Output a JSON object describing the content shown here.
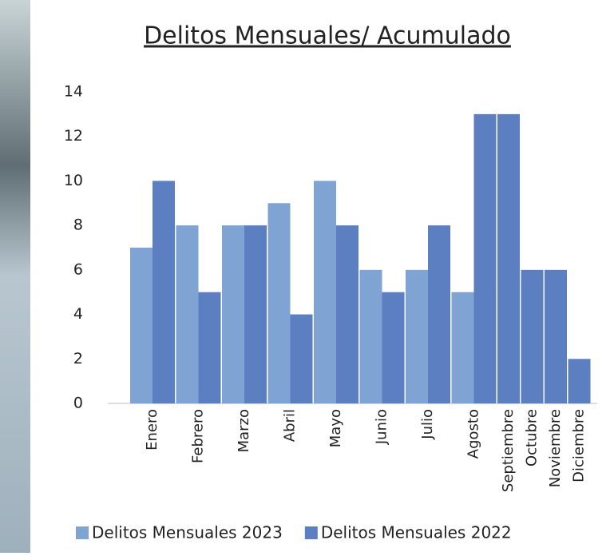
{
  "chart_data": {
    "type": "bar",
    "title": "Delitos Mensuales/ Acumulado",
    "categories": [
      "Enero",
      "Febrero",
      "Marzo",
      "Abril",
      "Mayo",
      "Junio",
      "Julio",
      "Agosto",
      "Septiembre",
      "Octubre",
      "Noviembre",
      "Diciembre"
    ],
    "series": [
      {
        "name": "Delitos Mensuales 2023",
        "color": "#7fa3d3",
        "values": [
          7,
          8,
          8,
          9,
          10,
          6,
          6,
          5,
          null,
          null,
          null,
          null
        ]
      },
      {
        "name": "Delitos Mensuales 2022",
        "color": "#5b7fc0",
        "values": [
          10,
          5,
          8,
          4,
          8,
          5,
          8,
          13,
          13,
          6,
          6,
          2
        ]
      }
    ],
    "ylim": [
      0,
      14
    ],
    "yticks": [
      0,
      2,
      4,
      6,
      8,
      10,
      12,
      14
    ],
    "grid": false
  }
}
